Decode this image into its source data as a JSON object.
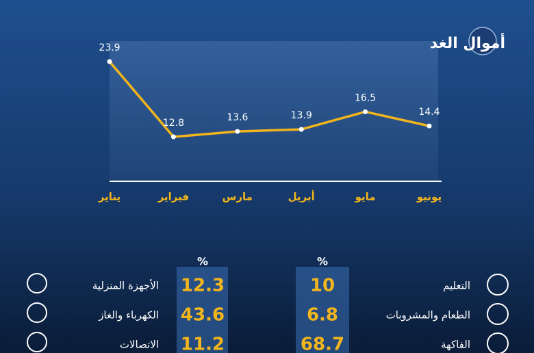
{
  "logo": "أموال الغد",
  "chart_data": {
    "type": "line",
    "categories": [
      "يناير",
      "فبراير",
      "مارس",
      "أبريل",
      "مايو",
      "يونيو"
    ],
    "values": [
      23.9,
      12.8,
      13.6,
      13.9,
      16.5,
      14.4
    ],
    "color": "#f2b51c"
  },
  "table": {
    "unit": "%",
    "right": [
      {
        "label": "التعليم",
        "value": 10
      },
      {
        "label": "الطعام والمشروبات",
        "value": 6.8
      },
      {
        "label": "الفاكهة",
        "value": 68.7
      }
    ],
    "left": [
      {
        "label": "الأجهزة المنزلية",
        "value": 12.3
      },
      {
        "label": "الكهرباء والغاز",
        "value": 43.6
      },
      {
        "label": "الاتصالات",
        "value": 11.2
      }
    ]
  }
}
